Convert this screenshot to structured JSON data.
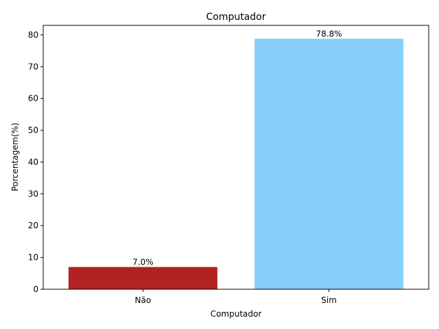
{
  "chart_data": {
    "type": "bar",
    "title": "Computador",
    "xlabel": "Computador",
    "ylabel": "Porcentagem(%)",
    "categories": [
      "Não",
      "Sim"
    ],
    "values": [
      7.0,
      78.8
    ],
    "data_labels": [
      "7.0%",
      "78.8%"
    ],
    "colors": [
      "#b22222",
      "#87cefa"
    ],
    "ylim": [
      0,
      83
    ],
    "yticks": [
      0,
      10,
      20,
      30,
      40,
      50,
      60,
      70,
      80
    ],
    "grid": false,
    "legend": "none"
  }
}
